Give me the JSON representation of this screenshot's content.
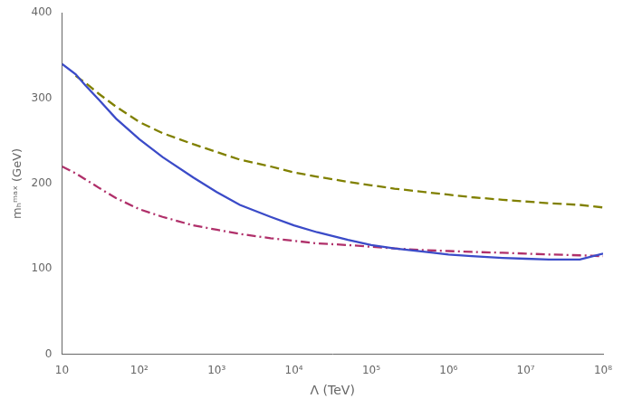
{
  "chart_data": {
    "type": "line",
    "xlabel": "Λ (TeV)",
    "ylabel": "mₕᵐᵃˣ (GeV)",
    "log": "x",
    "grid": false,
    "x": [
      10,
      15,
      20,
      30,
      50,
      100,
      200,
      500,
      1000,
      2000,
      5000,
      10000,
      20000,
      50000,
      100000,
      200000,
      500000,
      1000000,
      2000000,
      5000000,
      10000000,
      20000000,
      50000000,
      100000000
    ],
    "series": [
      {
        "color": "#3b4bc8",
        "line_style": "solid",
        "values": [
          340,
          328,
          315,
          298,
          276,
          252,
          231,
          207,
          190,
          175,
          161,
          151,
          143,
          134,
          128,
          124,
          120,
          117,
          115,
          113,
          112,
          111,
          111,
          118
        ]
      },
      {
        "color": "#808000",
        "line_style": "dashed",
        "values": [
          null,
          326,
          318,
          305,
          290,
          272,
          259,
          246,
          237,
          228,
          220,
          213,
          208,
          202,
          198,
          194,
          190,
          187,
          184,
          181,
          179,
          177,
          175,
          172
        ]
      },
      {
        "color": "#b0306a",
        "line_style": "dashdot",
        "values": [
          220,
          212,
          205,
          195,
          183,
          170,
          161,
          151,
          146,
          141,
          136,
          133,
          130,
          128,
          126,
          124,
          122,
          121,
          120,
          119,
          118,
          117,
          116,
          115
        ]
      }
    ],
    "xlim": [
      10,
      100000000
    ],
    "ylim": [
      0,
      400
    ],
    "xticks": [
      10,
      {
        "value": 100,
        "label": "10²"
      },
      {
        "value": 1000,
        "label": "10³"
      },
      {
        "value": 10000,
        "label": "10⁴"
      },
      {
        "value": 100000,
        "label": "10⁵"
      },
      {
        "value": 1000000,
        "label": "10⁶"
      },
      {
        "value": 10000000,
        "label": "10⁷"
      },
      {
        "value": 100000000,
        "label": "10⁸"
      }
    ],
    "yticks": [
      0,
      100,
      200,
      300,
      400
    ]
  }
}
